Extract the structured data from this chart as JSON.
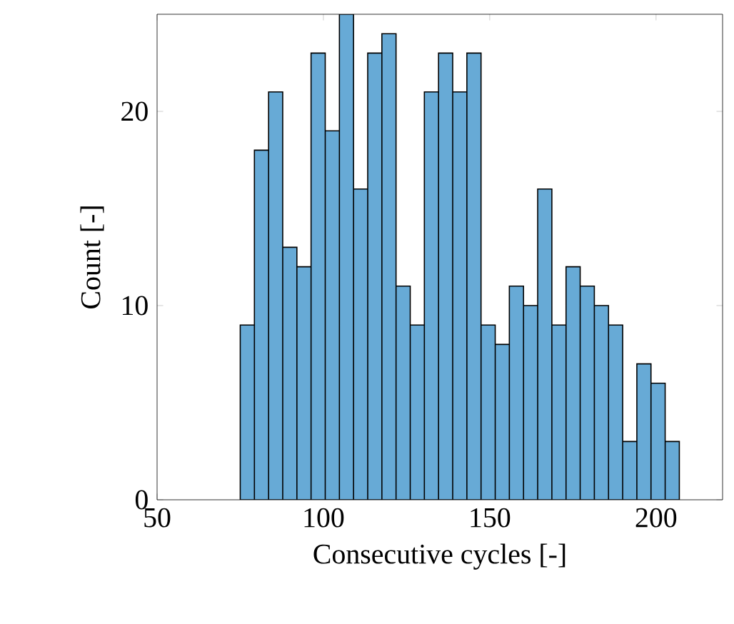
{
  "chart_data": {
    "type": "histogram",
    "xlabel": "Consecutive cycles [-]",
    "ylabel": "Count [-]",
    "bins": [
      75,
      79.26,
      83.52,
      87.77,
      92.03,
      96.29,
      100.55,
      104.81,
      109.06,
      113.32,
      117.58,
      121.84,
      126.1,
      130.35,
      134.61,
      138.87,
      143.13,
      147.39,
      151.65,
      155.9,
      160.16,
      164.42,
      168.68,
      172.94,
      177.19,
      181.45,
      185.71,
      189.97,
      194.23,
      198.48,
      202.74,
      207
    ],
    "values": [
      9,
      18,
      21,
      13,
      12,
      23,
      19,
      25,
      16,
      23,
      24,
      11,
      9,
      21,
      23,
      21,
      23,
      9,
      8,
      11,
      10,
      16,
      9,
      12,
      11,
      10,
      9,
      3,
      7,
      6,
      3
    ],
    "color": "#67aad6",
    "xlim": [
      50,
      220
    ],
    "ylim": [
      0,
      25
    ],
    "xticks": [
      50,
      100,
      150,
      200
    ],
    "yticks": [
      0,
      10,
      20
    ],
    "grid": false
  }
}
